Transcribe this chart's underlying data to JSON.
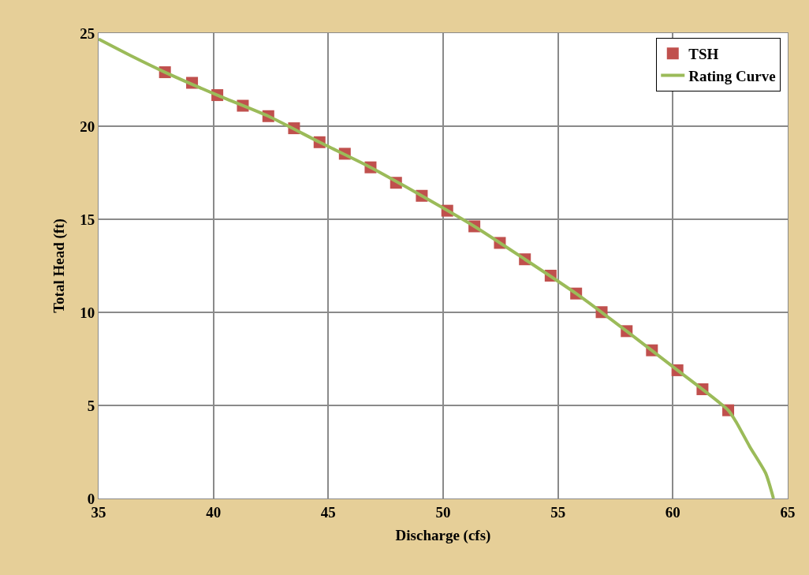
{
  "chart_data": {
    "type": "scatter",
    "xlabel": "Discharge (cfs)",
    "ylabel": "Total Head (ft)",
    "xlim": [
      35,
      65
    ],
    "xticks": [
      35,
      40,
      45,
      50,
      55,
      60,
      65
    ],
    "ylim": [
      0,
      25
    ],
    "yticks": [
      0,
      5,
      10,
      15,
      20,
      25
    ],
    "grid": true,
    "legend": "top right",
    "series": [
      {
        "name": "TSH",
        "marker": "square",
        "color": "#c0504d",
        "x": [
          37.89,
          39.07,
          40.17,
          41.28,
          42.39,
          43.51,
          44.62,
          45.72,
          46.84,
          47.95,
          49.07,
          50.18,
          51.36,
          52.47,
          53.56,
          54.68,
          55.79,
          56.9,
          57.99,
          59.09,
          60.2,
          61.29,
          62.41
        ],
        "values": [
          22.9,
          22.33,
          21.67,
          21.1,
          20.54,
          19.89,
          19.14,
          18.52,
          17.79,
          16.96,
          16.26,
          15.46,
          14.62,
          13.73,
          12.85,
          11.97,
          11.01,
          10.01,
          8.99,
          7.96,
          6.89,
          5.87,
          4.74
        ]
      },
      {
        "name": "Rating Curve",
        "type": "line",
        "marker": "none",
        "line_style": "solid",
        "color": "#9bbb59",
        "x": [
          35,
          36.43,
          37.89,
          40.17,
          42.39,
          44.62,
          46.84,
          49.07,
          51.36,
          53.56,
          55.79,
          57.99,
          60.2,
          62.41,
          62.78,
          63.35,
          64.04,
          64.38
        ],
        "values": [
          24.68,
          23.77,
          22.9,
          21.67,
          20.54,
          19.14,
          17.79,
          16.26,
          14.62,
          12.85,
          11.01,
          8.99,
          6.89,
          4.74,
          4.06,
          2.78,
          1.36,
          0
        ]
      }
    ]
  }
}
